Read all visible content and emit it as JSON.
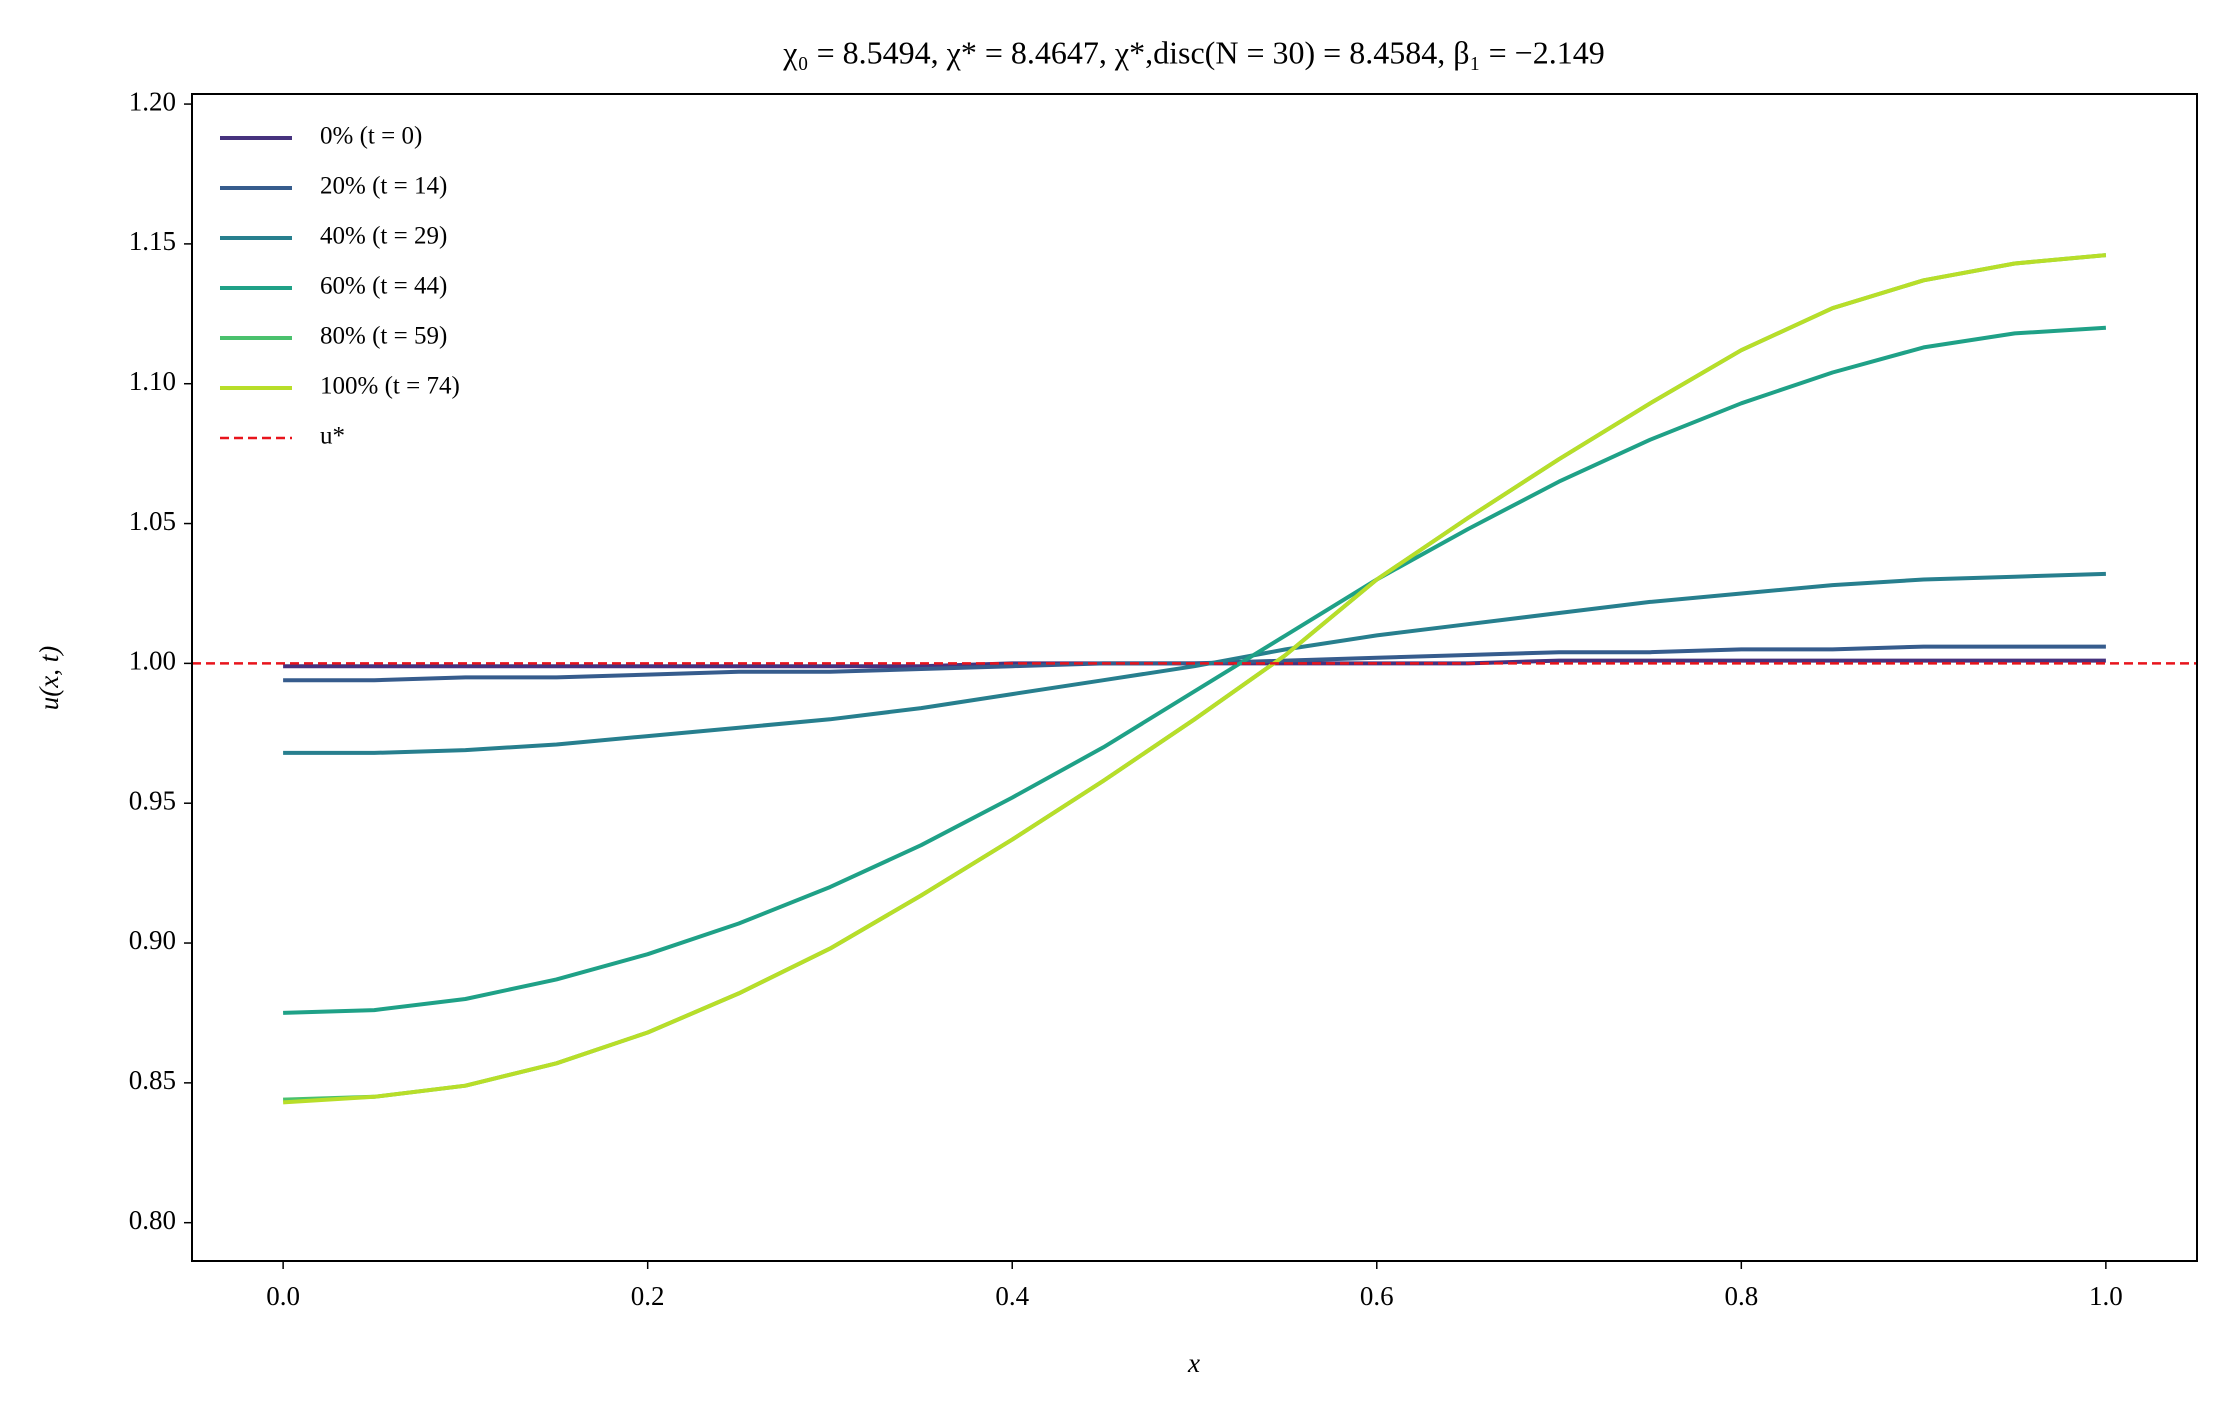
{
  "chart_data": {
    "type": "line",
    "title": "χ₀ = 8.5494,  χ* = 8.4647,  χ*,disc(N = 30) = 8.4584,  β₁ = −2.149",
    "xlabel": "x",
    "ylabel": "u(x, t)",
    "x": [
      0,
      0.05,
      0.1,
      0.15,
      0.2,
      0.25,
      0.3,
      0.35,
      0.4,
      0.45,
      0.5,
      0.55,
      0.6,
      0.65,
      0.7,
      0.75,
      0.8,
      0.85,
      0.9,
      0.95,
      1
    ],
    "series": [
      {
        "name": "0% (t = 0)",
        "color": "#46327e",
        "values": [
          0.999,
          0.999,
          0.999,
          0.999,
          0.999,
          0.999,
          0.999,
          0.999,
          1.0,
          1.0,
          1.0,
          1.0,
          1.0,
          1.0,
          1.001,
          1.001,
          1.001,
          1.001,
          1.001,
          1.001,
          1.001
        ]
      },
      {
        "name": "20% (t = 14)",
        "color": "#365c8d",
        "values": [
          0.994,
          0.994,
          0.995,
          0.995,
          0.996,
          0.997,
          0.997,
          0.998,
          0.999,
          1.0,
          1.0,
          1.001,
          1.002,
          1.003,
          1.004,
          1.004,
          1.005,
          1.005,
          1.006,
          1.006,
          1.006
        ]
      },
      {
        "name": "40% (t = 29)",
        "color": "#277f8e",
        "values": [
          0.968,
          0.968,
          0.969,
          0.971,
          0.974,
          0.977,
          0.98,
          0.984,
          0.989,
          0.994,
          0.999,
          1.005,
          1.01,
          1.014,
          1.018,
          1.022,
          1.025,
          1.028,
          1.03,
          1.031,
          1.032
        ]
      },
      {
        "name": "60% (t = 44)",
        "color": "#1fa187",
        "values": [
          0.875,
          0.876,
          0.88,
          0.887,
          0.896,
          0.907,
          0.92,
          0.935,
          0.952,
          0.97,
          0.99,
          1.01,
          1.03,
          1.048,
          1.065,
          1.08,
          1.093,
          1.104,
          1.113,
          1.118,
          1.12
        ]
      },
      {
        "name": "80% (t = 59)",
        "color": "#4ac16d",
        "values": [
          0.844,
          0.845,
          0.849,
          0.857,
          0.868,
          0.882,
          0.898,
          0.917,
          0.937,
          0.958,
          0.98,
          1.003,
          1.03,
          1.052,
          1.073,
          1.093,
          1.112,
          1.127,
          1.137,
          1.143,
          1.146
        ]
      },
      {
        "name": "100% (t = 74)",
        "color": "#b8de29",
        "values": [
          0.843,
          0.845,
          0.849,
          0.857,
          0.868,
          0.882,
          0.898,
          0.917,
          0.937,
          0.958,
          0.98,
          1.003,
          1.03,
          1.052,
          1.073,
          1.093,
          1.112,
          1.127,
          1.137,
          1.143,
          1.146
        ]
      }
    ],
    "hline": {
      "name": "u*",
      "value": 1,
      "color": "#e8141c",
      "dashed": true
    },
    "xlim": [
      -0.05,
      1.05
    ],
    "xticks": [
      {
        "value": 0,
        "label": "0.0"
      },
      0.2,
      0.4,
      0.6,
      0.8,
      {
        "value": 1,
        "label": "1.0"
      }
    ],
    "ylim": [
      0.7863,
      1.2036
    ],
    "yticks": [
      {
        "value": 0.8,
        "label": "0.80"
      },
      0.85,
      {
        "value": 0.9,
        "label": "0.90"
      },
      0.95,
      {
        "value": 1,
        "label": "1.00"
      },
      1.05,
      {
        "value": 1.1,
        "label": "1.10"
      },
      1.15,
      {
        "value": 1.2,
        "label": "1.20"
      }
    ],
    "legend": "upper left",
    "grid": false
  }
}
